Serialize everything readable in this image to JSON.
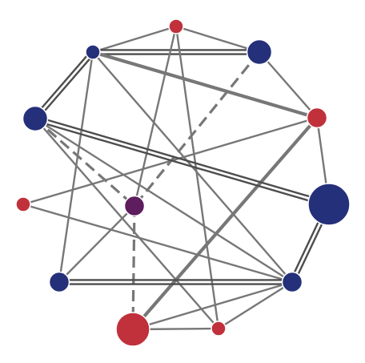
{
  "colors": {
    "background": "#ffffff",
    "edge": "#777777",
    "edge_dark": "#4d4d4d",
    "red": "#c0313b",
    "blue": "#25307a",
    "purple": "#5e1d5e"
  },
  "graph": {
    "nodes": [
      {
        "id": "n1",
        "group": "red",
        "weight": 1
      },
      {
        "id": "n2",
        "group": "blue",
        "weight": 1
      },
      {
        "id": "n3",
        "group": "blue",
        "weight": 2
      },
      {
        "id": "n4",
        "group": "red",
        "weight": 2
      },
      {
        "id": "n5",
        "group": "blue",
        "weight": 3
      },
      {
        "id": "n6",
        "group": "blue",
        "weight": 4
      },
      {
        "id": "n7",
        "group": "red",
        "weight": 1
      },
      {
        "id": "n8",
        "group": "purple",
        "weight": 2
      },
      {
        "id": "n9",
        "group": "blue",
        "weight": 2
      },
      {
        "id": "n10",
        "group": "blue",
        "weight": 2
      },
      {
        "id": "n11",
        "group": "red",
        "weight": 3
      },
      {
        "id": "n12",
        "group": "red",
        "weight": 1
      }
    ],
    "edges": [
      {
        "from": "n2",
        "to": "n1",
        "style": "single"
      },
      {
        "from": "n2",
        "to": "n3",
        "style": "double"
      },
      {
        "from": "n2",
        "to": "n4",
        "style": "bold"
      },
      {
        "from": "n2",
        "to": "n5",
        "style": "double"
      },
      {
        "from": "n2",
        "to": "n9",
        "style": "single"
      },
      {
        "from": "n2",
        "to": "n10",
        "style": "single"
      },
      {
        "from": "n1",
        "to": "n3",
        "style": "single"
      },
      {
        "from": "n1",
        "to": "n8",
        "style": "single"
      },
      {
        "from": "n1",
        "to": "n12",
        "style": "single"
      },
      {
        "from": "n3",
        "to": "n4",
        "style": "single"
      },
      {
        "from": "n3",
        "to": "n8",
        "style": "dashed"
      },
      {
        "from": "n4",
        "to": "n6",
        "style": "single"
      },
      {
        "from": "n4",
        "to": "n7",
        "style": "single"
      },
      {
        "from": "n4",
        "to": "n11",
        "style": "bold"
      },
      {
        "from": "n5",
        "to": "n8",
        "style": "dashed"
      },
      {
        "from": "n5",
        "to": "n6",
        "style": "double"
      },
      {
        "from": "n5",
        "to": "n12",
        "style": "single"
      },
      {
        "from": "n5",
        "to": "n10",
        "style": "single"
      },
      {
        "from": "n6",
        "to": "n10",
        "style": "double"
      },
      {
        "from": "n7",
        "to": "n10",
        "style": "single"
      },
      {
        "from": "n8",
        "to": "n9",
        "style": "single"
      },
      {
        "from": "n8",
        "to": "n11",
        "style": "dashed"
      },
      {
        "from": "n9",
        "to": "n10",
        "style": "double"
      },
      {
        "from": "n10",
        "to": "n11",
        "style": "single"
      },
      {
        "from": "n10",
        "to": "n12",
        "style": "single"
      },
      {
        "from": "n11",
        "to": "n12",
        "style": "single"
      }
    ]
  }
}
